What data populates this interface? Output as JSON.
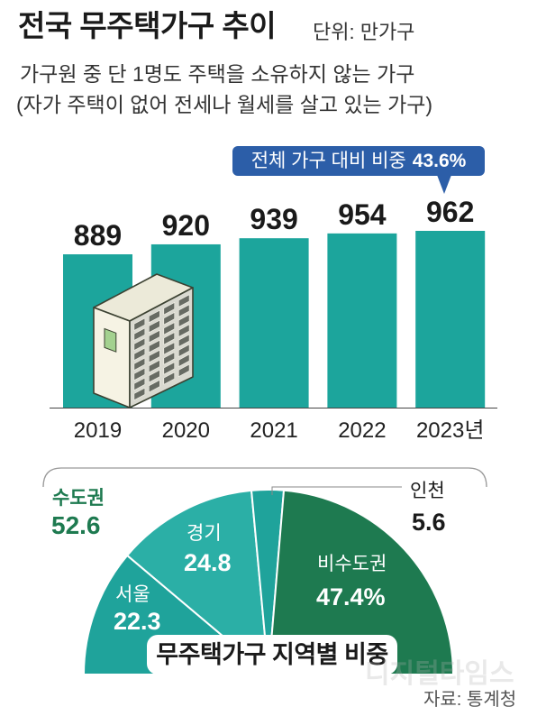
{
  "chart_data": [
    {
      "type": "bar",
      "title": "전국 무주택가구 추이",
      "unit": "단위: 만가구",
      "subtitle": [
        "가구원 중 단 1명도 주택을 소유하지 않는 가구",
        "(자가 주택이 없어 전세나 월세를 살고 있는 가구)"
      ],
      "categories": [
        "2019",
        "2020",
        "2021",
        "2022",
        "2023년"
      ],
      "values": [
        889,
        920,
        939,
        954,
        962
      ],
      "ylim": [
        412,
        962
      ],
      "annotations": [
        {
          "label": "전체 가구 대비 비중",
          "value": "43.6%"
        }
      ]
    },
    {
      "type": "pie",
      "title": "무주택가구 지역별 비중",
      "labels": [
        "서울",
        "경기",
        "인천",
        "비수도권"
      ],
      "values": [
        22.3,
        24.8,
        5.6,
        47.4
      ],
      "value_labels": [
        "22.3",
        "24.8",
        "5.6",
        "47.4%"
      ],
      "colors": [
        "#1fa39b",
        "#2bafa6",
        "#1fa39b",
        "#1e7a50"
      ],
      "annotations": [
        {
          "label": "수도권",
          "value": "52.6"
        }
      ]
    }
  ],
  "colors": {
    "bar": "#1ca59c",
    "callout": "#2c5ea8",
    "capital_area": "#1e7a50"
  },
  "illustration": {
    "icon": "apartment-building-icon"
  },
  "watermark": "디지털타임스",
  "source": "자료: 통계청"
}
